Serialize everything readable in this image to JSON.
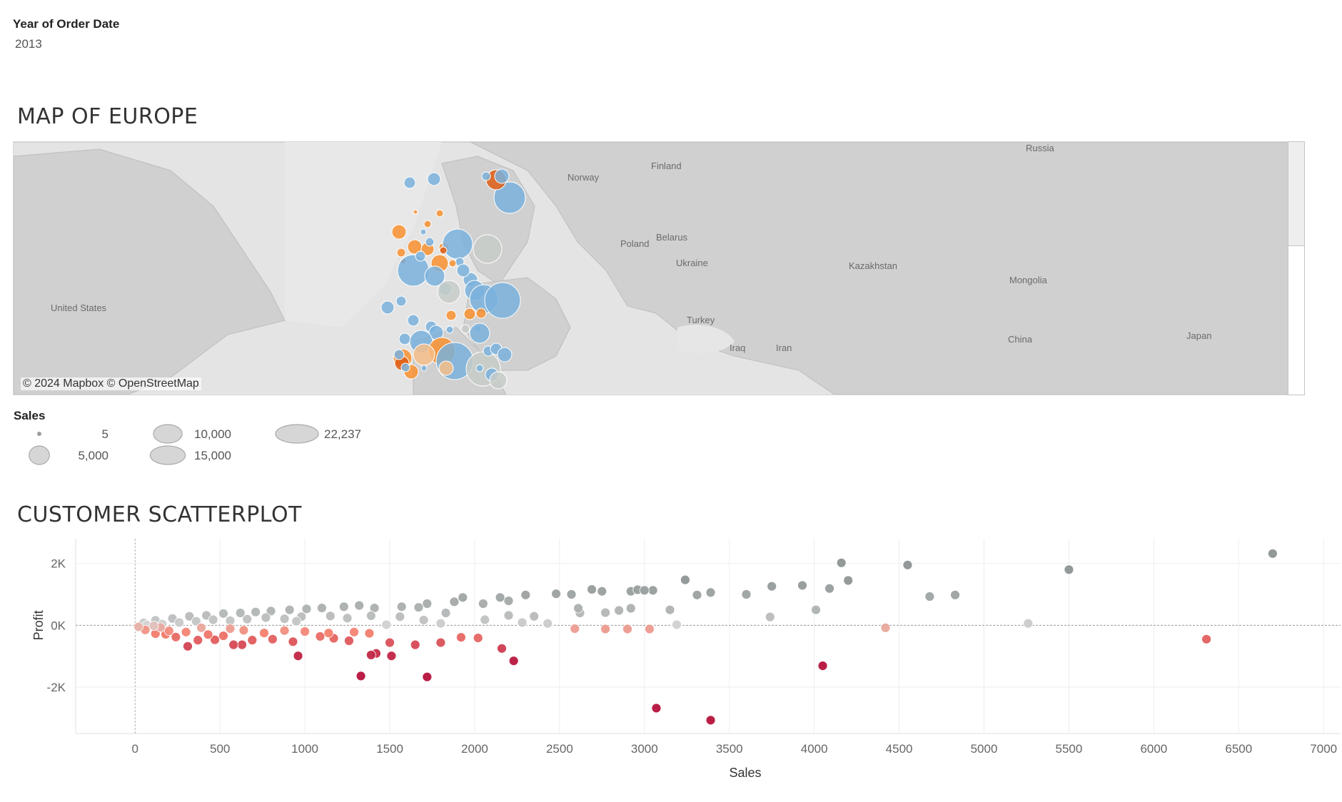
{
  "filter": {
    "title": "Year of Order Date",
    "value": "2013"
  },
  "map": {
    "title": "MAP OF EUROPE",
    "attribution": "© 2024 Mapbox © OpenStreetMap",
    "labels": [
      "Russia",
      "Finland",
      "Norway",
      "Belarus",
      "Poland",
      "Ukraine",
      "Kazakhstan",
      "Mongolia",
      "United States",
      "Turkey",
      "China",
      "Japan",
      "Iraq",
      "Iran"
    ],
    "colors": {
      "blue": "#7ab2dc",
      "orange": "#f8912f",
      "dark_orange": "#dd5d15",
      "light_orange": "#f6c08a",
      "gray": "#c8ccc8"
    }
  },
  "size_legend": {
    "title": "Sales",
    "items": [
      {
        "label": "5",
        "value": 5
      },
      {
        "label": "5,000",
        "value": 5000
      },
      {
        "label": "10,000",
        "value": 10000
      },
      {
        "label": "15,000",
        "value": 15000
      },
      {
        "label": "22,237",
        "value": 22237
      }
    ]
  },
  "scatter": {
    "title": "CUSTOMER SCATTERPLOT"
  },
  "chart_data": {
    "type": "scatter",
    "title": "CUSTOMER SCATTERPLOT",
    "xlabel": "Sales",
    "ylabel": "Profit",
    "xlim": [
      -350,
      7100
    ],
    "ylim": [
      -3500,
      2800
    ],
    "x_ticks": [
      0,
      500,
      1000,
      1500,
      2000,
      2500,
      3000,
      3500,
      4000,
      4500,
      5000,
      5500,
      6000,
      6500,
      7000
    ],
    "x_tick_labels": [
      "0",
      "500",
      "1000",
      "1500",
      "2000",
      "2500",
      "3000",
      "3500",
      "4000",
      "4500",
      "5000",
      "5500",
      "6000",
      "6500",
      "7000"
    ],
    "y_ticks": [
      2000,
      0,
      -2000
    ],
    "y_tick_labels": [
      "2K",
      "0K",
      "-2K"
    ],
    "grid": true,
    "color_scale": {
      "positive": "#8c9392",
      "neutral": "#d9d9d9",
      "negative": "#b6123c"
    },
    "points": [
      [
        6700,
        2320
      ],
      [
        5500,
        1800
      ],
      [
        4160,
        2020
      ],
      [
        4550,
        1950
      ],
      [
        3240,
        1470
      ],
      [
        3600,
        1000
      ],
      [
        3750,
        1260
      ],
      [
        3930,
        1290
      ],
      [
        4090,
        1190
      ],
      [
        4200,
        1450
      ],
      [
        4680,
        930
      ],
      [
        4830,
        980
      ],
      [
        3390,
        1060
      ],
      [
        3310,
        980
      ],
      [
        3150,
        500
      ],
      [
        4010,
        500
      ],
      [
        3740,
        270
      ],
      [
        5260,
        60
      ],
      [
        3190,
        20
      ],
      [
        2920,
        1100
      ],
      [
        3050,
        1130
      ],
      [
        2960,
        1150
      ],
      [
        3000,
        1130
      ],
      [
        2750,
        1100
      ],
      [
        2690,
        1160
      ],
      [
        2480,
        1020
      ],
      [
        2570,
        1000
      ],
      [
        2300,
        980
      ],
      [
        2150,
        900
      ],
      [
        2200,
        790
      ],
      [
        1930,
        900
      ],
      [
        2050,
        700
      ],
      [
        1880,
        760
      ],
      [
        1720,
        700
      ],
      [
        1670,
        580
      ],
      [
        1570,
        600
      ],
      [
        1410,
        560
      ],
      [
        1320,
        640
      ],
      [
        1230,
        600
      ],
      [
        1100,
        560
      ],
      [
        1010,
        530
      ],
      [
        910,
        500
      ],
      [
        800,
        460
      ],
      [
        710,
        430
      ],
      [
        620,
        400
      ],
      [
        520,
        380
      ],
      [
        420,
        320
      ],
      [
        320,
        290
      ],
      [
        220,
        220
      ],
      [
        120,
        160
      ],
      [
        50,
        80
      ],
      [
        2350,
        290
      ],
      [
        2620,
        400
      ],
      [
        2770,
        410
      ],
      [
        2850,
        480
      ],
      [
        2920,
        550
      ],
      [
        2610,
        550
      ],
      [
        2430,
        60
      ],
      [
        2200,
        320
      ],
      [
        2060,
        180
      ],
      [
        1830,
        400
      ],
      [
        1700,
        170
      ],
      [
        1560,
        280
      ],
      [
        1390,
        310
      ],
      [
        1250,
        230
      ],
      [
        1150,
        300
      ],
      [
        980,
        280
      ],
      [
        880,
        210
      ],
      [
        770,
        250
      ],
      [
        660,
        200
      ],
      [
        560,
        150
      ],
      [
        460,
        180
      ],
      [
        360,
        130
      ],
      [
        260,
        90
      ],
      [
        160,
        40
      ],
      [
        70,
        10
      ],
      [
        950,
        130
      ],
      [
        1480,
        20
      ],
      [
        1800,
        60
      ],
      [
        2280,
        90
      ],
      [
        4420,
        -80
      ],
      [
        2590,
        -110
      ],
      [
        2770,
        -120
      ],
      [
        2900,
        -120
      ],
      [
        3030,
        -120
      ],
      [
        6310,
        -450
      ],
      [
        4050,
        -1310
      ],
      [
        3070,
        -2680
      ],
      [
        3390,
        -3070
      ],
      [
        1330,
        -1640
      ],
      [
        1720,
        -1670
      ],
      [
        960,
        -990
      ],
      [
        1420,
        -910
      ],
      [
        1390,
        -960
      ],
      [
        1510,
        -990
      ],
      [
        2230,
        -1150
      ],
      [
        2160,
        -750
      ],
      [
        1650,
        -630
      ],
      [
        1500,
        -560
      ],
      [
        1920,
        -390
      ],
      [
        2020,
        -410
      ],
      [
        1800,
        -560
      ],
      [
        1260,
        -500
      ],
      [
        1170,
        -420
      ],
      [
        1090,
        -360
      ],
      [
        930,
        -530
      ],
      [
        810,
        -450
      ],
      [
        690,
        -480
      ],
      [
        630,
        -630
      ],
      [
        580,
        -630
      ],
      [
        470,
        -470
      ],
      [
        370,
        -480
      ],
      [
        310,
        -680
      ],
      [
        240,
        -380
      ],
      [
        180,
        -290
      ],
      [
        120,
        -270
      ],
      [
        60,
        -150
      ],
      [
        20,
        -50
      ],
      [
        1000,
        -200
      ],
      [
        760,
        -250
      ],
      [
        520,
        -340
      ],
      [
        430,
        -300
      ],
      [
        300,
        -220
      ],
      [
        200,
        -180
      ],
      [
        150,
        -70
      ],
      [
        110,
        -20
      ],
      [
        1140,
        -250
      ],
      [
        1380,
        -260
      ],
      [
        1290,
        -220
      ],
      [
        880,
        -170
      ],
      [
        640,
        -160
      ],
      [
        560,
        -110
      ],
      [
        390,
        -80
      ]
    ]
  }
}
